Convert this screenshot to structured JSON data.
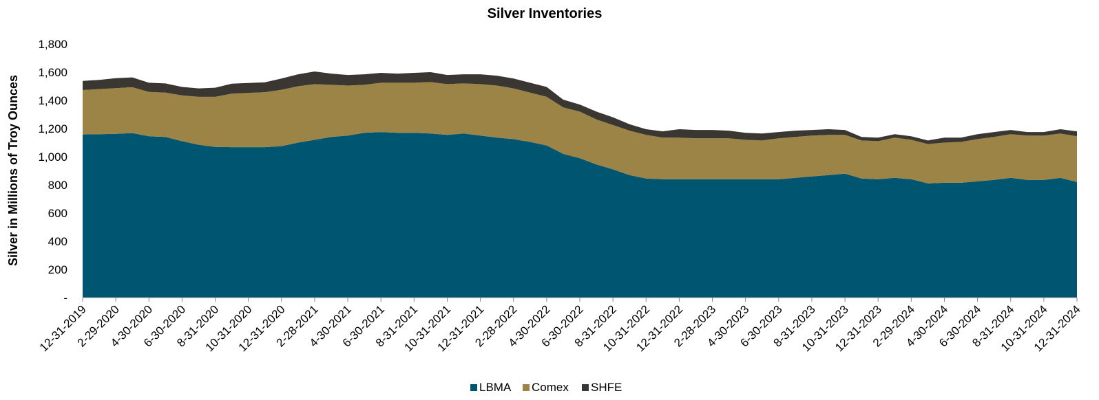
{
  "chart_data": {
    "type": "area",
    "stacked": true,
    "title": "Silver Inventories",
    "xlabel": "",
    "ylabel": "Silver in Millions of Troy Ounces",
    "ylim": [
      0,
      1800
    ],
    "yticks": [
      {
        "value": 0,
        "label": "-"
      },
      {
        "value": 200,
        "label": "200"
      },
      {
        "value": 400,
        "label": "400"
      },
      {
        "value": 600,
        "label": "600"
      },
      {
        "value": 800,
        "label": "800"
      },
      {
        "value": 1000,
        "label": "1,000"
      },
      {
        "value": 1200,
        "label": "1,200"
      },
      {
        "value": 1400,
        "label": "1,400"
      },
      {
        "value": 1600,
        "label": "1,600"
      },
      {
        "value": 1800,
        "label": "1,800"
      }
    ],
    "grid": false,
    "legend_position": "bottom",
    "x": [
      "12-31-2019",
      "1-31-2020",
      "2-29-2020",
      "3-31-2020",
      "4-30-2020",
      "5-31-2020",
      "6-30-2020",
      "7-31-2020",
      "8-31-2020",
      "9-30-2020",
      "10-31-2020",
      "11-30-2020",
      "12-31-2020",
      "1-31-2021",
      "2-28-2021",
      "3-31-2021",
      "4-30-2021",
      "5-31-2021",
      "6-30-2021",
      "7-31-2021",
      "8-31-2021",
      "9-30-2021",
      "10-31-2021",
      "11-30-2021",
      "12-31-2021",
      "1-31-2022",
      "2-28-2022",
      "3-31-2022",
      "4-30-2022",
      "5-31-2022",
      "6-30-2022",
      "7-31-2022",
      "8-31-2022",
      "9-30-2022",
      "10-31-2022",
      "11-30-2022",
      "12-31-2022",
      "1-31-2023",
      "2-28-2023",
      "3-31-2023",
      "4-30-2023",
      "5-31-2023",
      "6-30-2023",
      "7-31-2023",
      "8-31-2023",
      "9-30-2023",
      "10-31-2023",
      "11-30-2023",
      "12-31-2023",
      "1-31-2024",
      "2-29-2024",
      "3-31-2024",
      "4-30-2024",
      "5-31-2024",
      "6-30-2024",
      "7-31-2024",
      "8-31-2024",
      "9-30-2024",
      "10-31-2024",
      "11-30-2024",
      "12-31-2024"
    ],
    "x_tick_labels": [
      "12-31-2019",
      "2-29-2020",
      "4-30-2020",
      "6-30-2020",
      "8-31-2020",
      "10-31-2020",
      "12-31-2020",
      "2-28-2021",
      "4-30-2021",
      "6-30-2021",
      "8-31-2021",
      "10-31-2021",
      "12-31-2021",
      "2-28-2022",
      "4-30-2022",
      "6-30-2022",
      "8-31-2022",
      "10-31-2022",
      "12-31-2022",
      "2-28-2023",
      "4-30-2023",
      "6-30-2023",
      "8-31-2023",
      "10-31-2023",
      "12-31-2023",
      "2-29-2024",
      "4-30-2024",
      "6-30-2024",
      "8-31-2024",
      "10-31-2024",
      "12-31-2024"
    ],
    "series": [
      {
        "name": "LBMA",
        "color": "#005670",
        "values": [
          1158,
          1160,
          1162,
          1168,
          1145,
          1140,
          1110,
          1085,
          1070,
          1068,
          1068,
          1068,
          1075,
          1100,
          1120,
          1140,
          1150,
          1170,
          1175,
          1170,
          1170,
          1165,
          1155,
          1165,
          1150,
          1135,
          1125,
          1105,
          1080,
          1020,
          990,
          945,
          910,
          870,
          845,
          840,
          840,
          840,
          840,
          840,
          840,
          840,
          840,
          850,
          860,
          870,
          880,
          845,
          840,
          850,
          840,
          810,
          815,
          815,
          825,
          835,
          850,
          835,
          835,
          850,
          820
        ]
      },
      {
        "name": "Comex",
        "color": "#9B8446",
        "values": [
          315,
          320,
          325,
          325,
          315,
          315,
          325,
          340,
          355,
          380,
          385,
          390,
          400,
          400,
          395,
          370,
          355,
          340,
          350,
          355,
          355,
          365,
          360,
          355,
          365,
          370,
          360,
          350,
          345,
          330,
          330,
          320,
          315,
          315,
          310,
          295,
          295,
          290,
          290,
          290,
          280,
          275,
          290,
          290,
          290,
          285,
          275,
          270,
          270,
          285,
          280,
          280,
          285,
          290,
          300,
          305,
          310,
          315,
          315,
          315,
          325
        ]
      },
      {
        "name": "SHFE",
        "color": "#3A3632",
        "values": [
          65,
          65,
          70,
          70,
          65,
          65,
          60,
          60,
          65,
          70,
          70,
          70,
          80,
          85,
          90,
          80,
          75,
          75,
          70,
          65,
          70,
          70,
          65,
          65,
          70,
          70,
          70,
          70,
          70,
          55,
          50,
          55,
          55,
          45,
          40,
          45,
          60,
          60,
          60,
          55,
          50,
          50,
          45,
          45,
          40,
          40,
          35,
          25,
          25,
          25,
          25,
          25,
          35,
          30,
          35,
          35,
          30,
          25,
          25,
          30,
          35
        ]
      }
    ]
  }
}
